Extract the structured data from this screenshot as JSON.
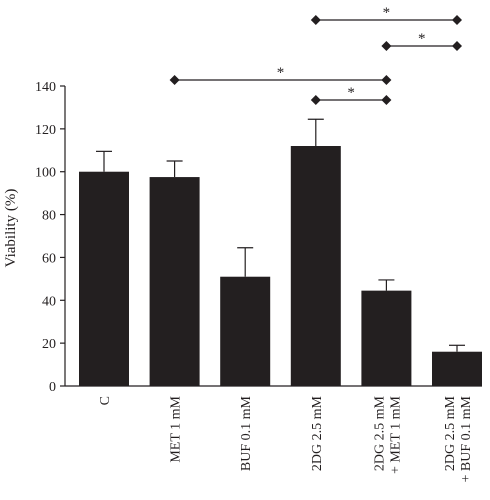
{
  "chart_data": {
    "type": "bar",
    "ylabel": "Viability (%)",
    "ylim": [
      0,
      140
    ],
    "yticks": [
      0,
      20,
      40,
      60,
      80,
      100,
      120,
      140
    ],
    "grid": false,
    "categories": [
      [
        "C"
      ],
      [
        "MET 1 mM"
      ],
      [
        "BUF 0.1 mM"
      ],
      [
        "2DG 2.5 mM"
      ],
      [
        "2DG 2.5 mM",
        "+ MET 1 mM"
      ],
      [
        "2DG 2.5 mM",
        "+ BUF 0.1 mM"
      ]
    ],
    "values": [
      100,
      97.5,
      51,
      112,
      44.5,
      16
    ],
    "errors": [
      9.5,
      7.5,
      13.5,
      12.5,
      5,
      3
    ],
    "significance": [
      {
        "from": 3,
        "to": 5,
        "label": "*"
      },
      {
        "from": 4,
        "to": 5,
        "label": "*"
      },
      {
        "from": 1,
        "to": 4,
        "label": "*"
      },
      {
        "from": 3,
        "to": 4,
        "label": "*"
      }
    ],
    "colors": {
      "bar": "#231f20",
      "axis": "#231f20"
    }
  }
}
